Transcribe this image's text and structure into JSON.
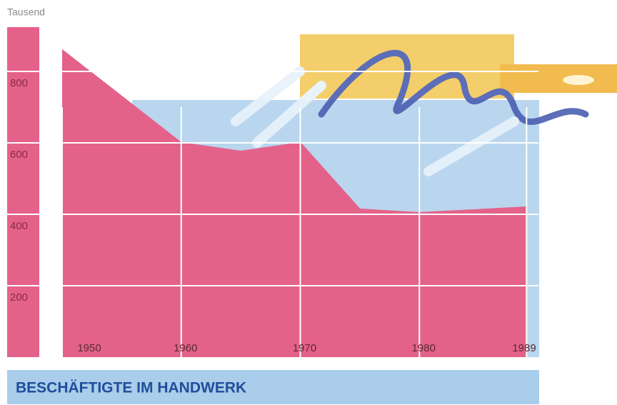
{
  "chart_data": {
    "type": "area",
    "title": "BESCHÄFTIGTE IM HANDWERK",
    "y_label": "Tausend",
    "x": [
      1950,
      1960,
      1965,
      1970,
      1975,
      1980,
      1989
    ],
    "values": [
      860,
      600,
      576,
      600,
      414,
      404,
      420
    ],
    "color": "#e4628a",
    "xlim": [
      1950,
      1990
    ],
    "xticks": [
      1950,
      1960,
      1970,
      1980,
      1989
    ],
    "ylim": [
      0,
      900
    ],
    "yticks": [
      200,
      400,
      600,
      800
    ],
    "grid": true
  }
}
